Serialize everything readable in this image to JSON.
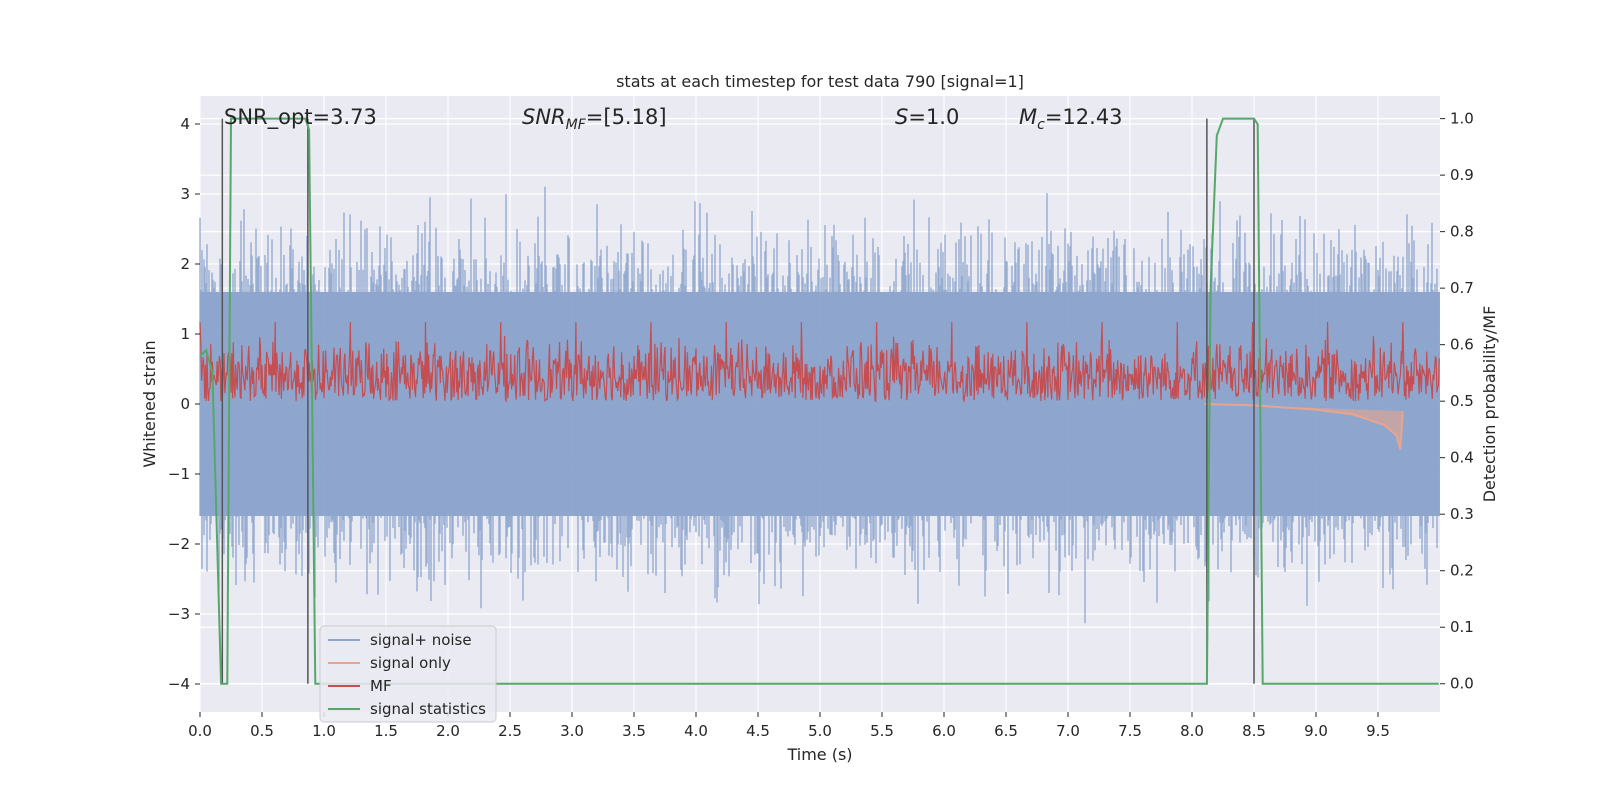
{
  "chart_data": {
    "type": "line",
    "title": "stats at each timestep for test data 790 [signal=1]",
    "xlabel": "Time (s)",
    "ylabel": "Whitened strain",
    "ylabel_right": "Detection probability/MF",
    "xlim": [
      0.0,
      10.0
    ],
    "ylim": [
      -4.4,
      4.4
    ],
    "ylim_right": [
      -0.05,
      1.04
    ],
    "x_ticks": [
      0.0,
      0.5,
      1.0,
      1.5,
      2.0,
      2.5,
      3.0,
      3.5,
      4.0,
      4.5,
      5.0,
      5.5,
      6.0,
      6.5,
      7.0,
      7.5,
      8.0,
      8.5,
      9.0,
      9.5
    ],
    "x_tick_labels": [
      "0.0",
      "0.5",
      "1.0",
      "1.5",
      "2.0",
      "2.5",
      "3.0",
      "3.5",
      "4.0",
      "4.5",
      "5.0",
      "5.5",
      "6.0",
      "6.5",
      "7.0",
      "7.5",
      "8.0",
      "8.5",
      "9.0",
      "9.5"
    ],
    "y_ticks": [
      4,
      3,
      2,
      1,
      0,
      -1,
      -2,
      -3,
      -4
    ],
    "y_tick_labels": [
      "4",
      "3",
      "2",
      "1",
      "0",
      "−1",
      "−2",
      "−3",
      "−4"
    ],
    "y_right_ticks": [
      1.0,
      0.9,
      0.8,
      0.7,
      0.6,
      0.5,
      0.4,
      0.3,
      0.2,
      0.1,
      0.0
    ],
    "y_right_tick_labels": [
      "1.0",
      "0.9",
      "0.8",
      "0.7",
      "0.6",
      "0.5",
      "0.4",
      "0.3",
      "0.2",
      "0.1",
      "0.0"
    ],
    "annotations": {
      "snr_opt": "SNR_opt=3.73",
      "snr_mf_sym": "SNR",
      "snr_mf_sub": "MF",
      "snr_mf_rest": "=[5.18]",
      "s_sym": "S",
      "s_rest": "=1.0",
      "mc_sym": "M",
      "mc_sub": "c",
      "mc_rest": "=12.43"
    },
    "legend_placement": "lower-left",
    "grid": true,
    "series": [
      {
        "name": "signal+ noise",
        "color": "#8da5cc",
        "note": "noise band approx ±1.6 with excursions to ±3.3; rendered procedurally"
      },
      {
        "name": "signal only",
        "color": "#e8a58d",
        "x": [
          8.1,
          8.5,
          9.0,
          9.3,
          9.55,
          9.65,
          9.68,
          9.7
        ],
        "y": [
          0.0,
          -0.02,
          -0.08,
          -0.15,
          -0.3,
          -0.45,
          -0.65,
          -0.1
        ]
      },
      {
        "name": "MF",
        "color": "#c44e52",
        "band_right_axis": [
          0.5,
          0.62
        ]
      },
      {
        "name": "signal statistics",
        "color": "#55a868",
        "x": [
          0.0,
          0.05,
          0.1,
          0.17,
          0.22,
          0.25,
          0.85,
          0.88,
          0.93,
          8.12,
          8.15,
          8.2,
          8.25,
          8.5,
          8.53,
          8.57,
          9.99
        ],
        "y_right": [
          0.58,
          0.59,
          0.55,
          0.0,
          0.0,
          1.0,
          1.0,
          0.98,
          0.0,
          0.0,
          0.7,
          0.97,
          1.0,
          1.0,
          0.99,
          0.0,
          0.0
        ]
      }
    ],
    "vertical_markers_x": [
      0.18,
      0.87,
      8.12,
      8.5
    ],
    "colors": {
      "background": "#eaeaf2",
      "grid": "#ffffff",
      "noise": "#8da5cc",
      "signal_only": "#e8a58d",
      "mf": "#c44e52",
      "stats": "#55a868",
      "marker": "#555555"
    }
  }
}
